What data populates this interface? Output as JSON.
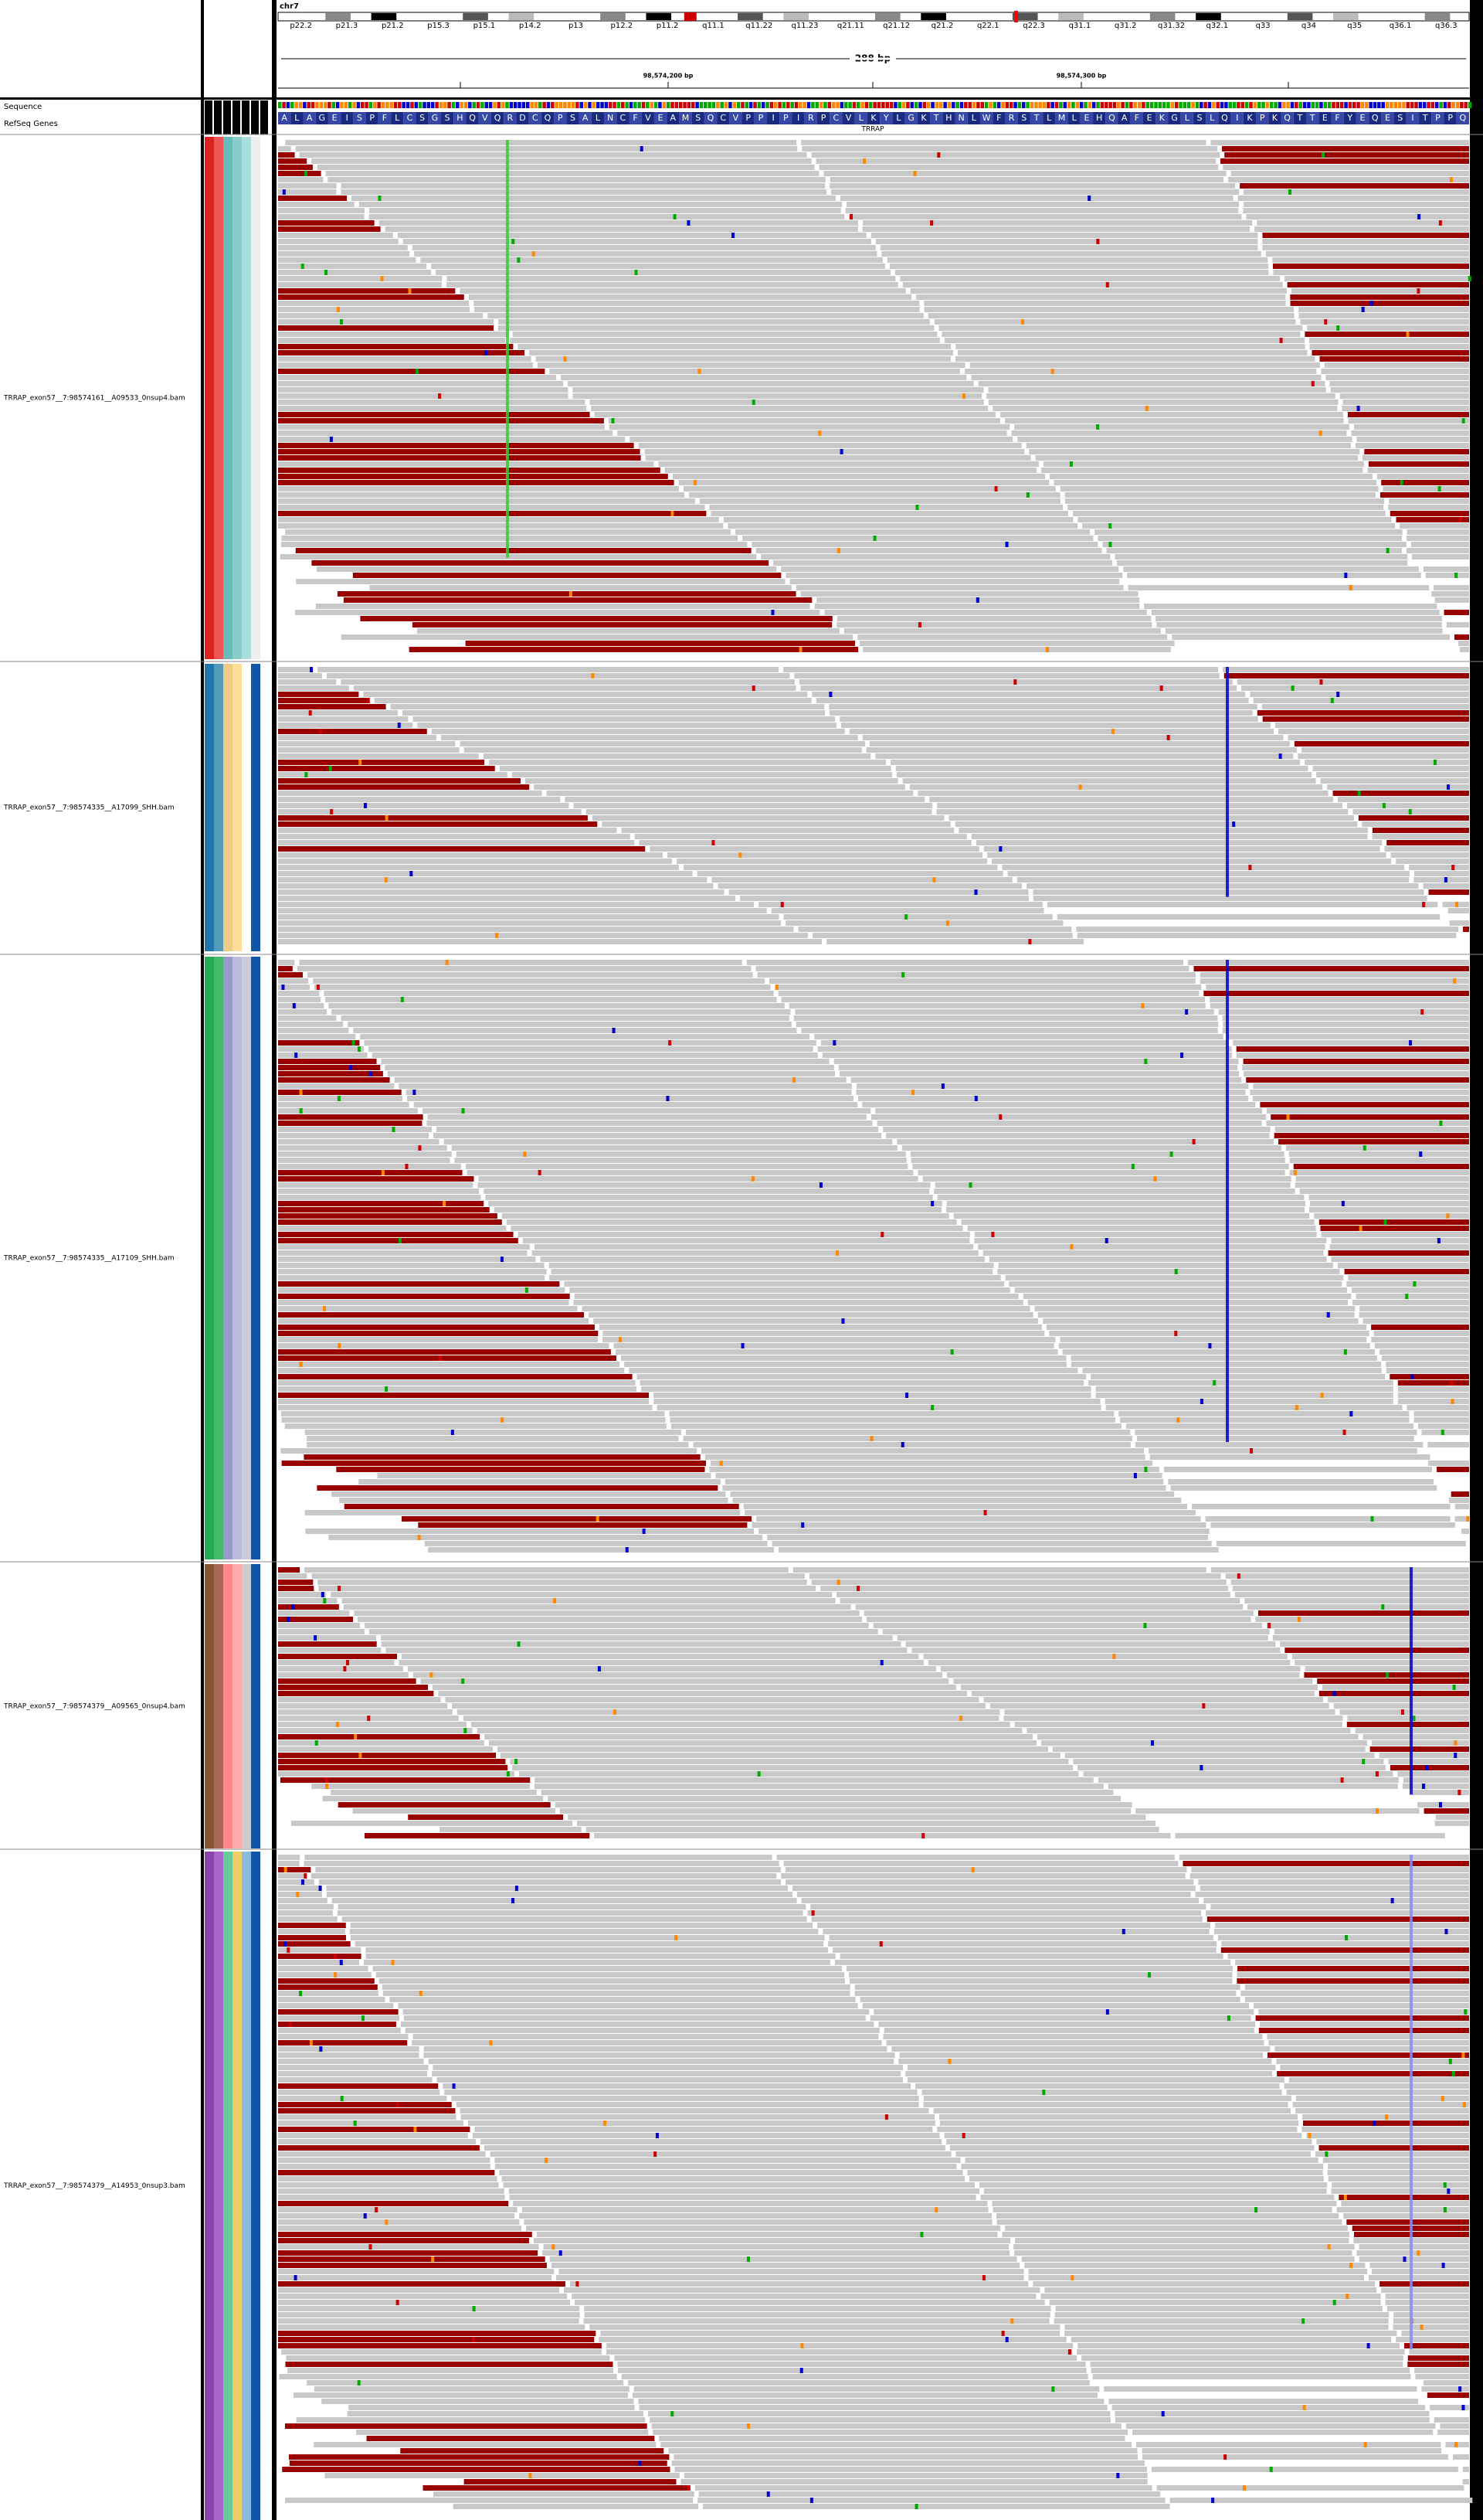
{
  "header": {
    "chromosome": "chr7",
    "cytobands": [
      "p22.2",
      "p21.3",
      "p21.2",
      "p15.3",
      "p15.1",
      "p14.2",
      "p13",
      "p12.2",
      "p11.2",
      "q11.1",
      "q11.22",
      "q11.23",
      "q21.11",
      "q21.12",
      "q21.2",
      "q22.1",
      "q22.3",
      "q31.1",
      "q31.2",
      "q31.32",
      "q32.1",
      "q33",
      "q34",
      "q35",
      "q36.1",
      "q36.3"
    ],
    "span": "288 bp",
    "ruler_labels": [
      "98,574,200 bp",
      "98,574,300 bp"
    ]
  },
  "feature_tracks": {
    "sequence": "Sequence",
    "genes": "RefSeq Genes",
    "gene_name": "TRRAP",
    "amino_acids": [
      "A",
      "L",
      "A",
      "G",
      "E",
      "I",
      "S",
      "P",
      "F",
      "L",
      "C",
      "S",
      "G",
      "S",
      "H",
      "Q",
      "V",
      "Q",
      "R",
      "D",
      "C",
      "Q",
      "P",
      "S",
      "A",
      "L",
      "N",
      "C",
      "F",
      "V",
      "E",
      "A",
      "M",
      "S",
      "Q",
      "C",
      "V",
      "P",
      "P",
      "I",
      "P",
      "I",
      "R",
      "P",
      "C",
      "V",
      "L",
      "K",
      "Y",
      "L",
      "G",
      "K",
      "T",
      "H",
      "N",
      "L",
      "W",
      "F",
      "R",
      "S",
      "T",
      "L",
      "M",
      "L",
      "E",
      "H",
      "Q",
      "A",
      "F",
      "E",
      "K",
      "G",
      "L",
      "S",
      "L",
      "Q",
      "I",
      "K",
      "P",
      "K",
      "Q",
      "T",
      "T",
      "E",
      "F",
      "Y",
      "E",
      "Q",
      "E",
      "S",
      "I",
      "T",
      "P",
      "P",
      "Q"
    ]
  },
  "tracks": [
    {
      "name": "TRRAP_exon57__7:98574161__A09533_0nsup4.bam"
    },
    {
      "name": "TRRAP_exon57__7:98574335__A17099_SHH.bam"
    },
    {
      "name": "TRRAP_exon57__7:98574335__A17109_SHH.bam"
    },
    {
      "name": "TRRAP_exon57__7:98574379__A09565_0nsup4.bam"
    },
    {
      "name": "TRRAP_exon57__7:98574379__A14953_0nsup3.bam"
    }
  ]
}
